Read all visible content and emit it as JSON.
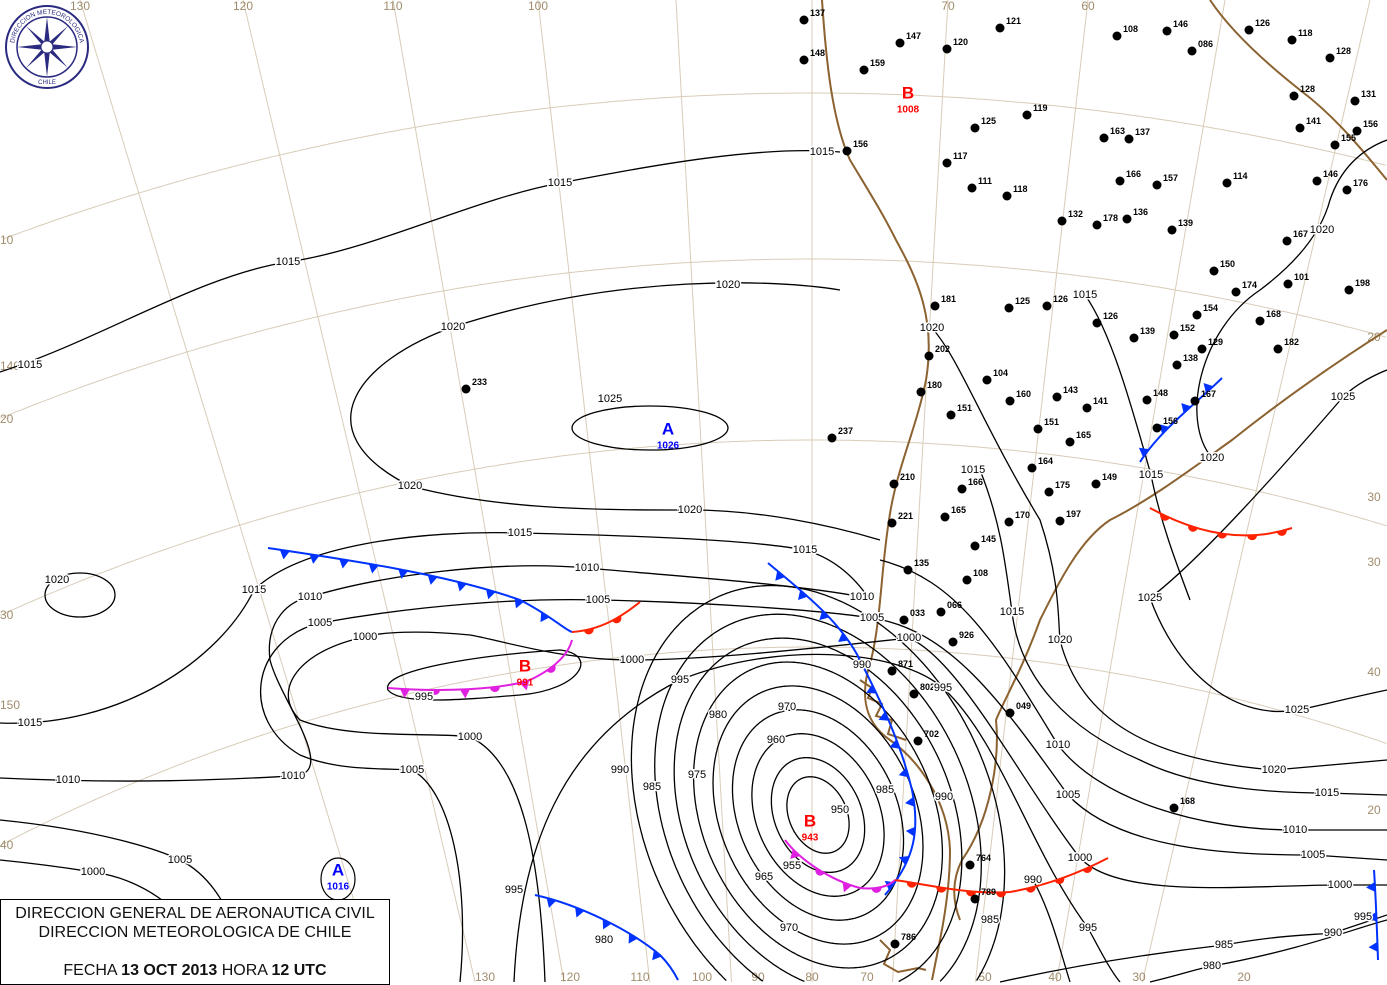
{
  "logo": {
    "text_top": "DIRECCION METEOROLOGICA",
    "text_bottom": "CHILE"
  },
  "caption": {
    "line1": "DIRECCION GENERAL DE AERONAUTICA CIVIL",
    "line2": "DIRECCION METEOROLOGICA DE CHILE",
    "date_prefix": "FECHA",
    "date": "13 OCT 2013",
    "time_prefix": "HORA",
    "time": "12 UTC"
  },
  "colors": {
    "high": "#0000ff",
    "low": "#ff0000",
    "cold_front": "#0033ff",
    "warm_front": "#ff2200",
    "occluded_front": "#e020e0",
    "coastline": "#8b6230",
    "graticule": "#d8ccb8"
  },
  "pressure_centers": [
    {
      "letter": "A",
      "value": "1026",
      "type": "high"
    },
    {
      "letter": "B",
      "value": "991",
      "type": "low"
    },
    {
      "letter": "B",
      "value": "943",
      "type": "low"
    },
    {
      "letter": "B",
      "value": "1008",
      "type": "low"
    },
    {
      "letter": "A",
      "value": "1016",
      "type": "high"
    }
  ],
  "graticule_labels": [
    "130",
    "120",
    "110",
    "100",
    "70",
    "60",
    "10",
    "140",
    "20",
    "30",
    "150",
    "40",
    "20",
    "30",
    "30",
    "40",
    "20",
    "130",
    "120",
    "110",
    "100",
    "90",
    "80",
    "70",
    "50",
    "40",
    "30",
    "20"
  ],
  "isobar_labels": [
    "1015",
    "1015",
    "1015",
    "1015",
    "1020",
    "1020",
    "1020",
    "1020",
    "1020",
    "1020",
    "1025",
    "1015",
    "1015",
    "1015",
    "1015",
    "1010",
    "1010",
    "1010",
    "1010",
    "1010",
    "1005",
    "1005",
    "1005",
    "1005",
    "1005",
    "1000",
    "1000",
    "1000",
    "1000",
    "1000",
    "995",
    "995",
    "995",
    "995",
    "990",
    "990",
    "990",
    "985",
    "985",
    "985",
    "980",
    "980",
    "975",
    "970",
    "970",
    "965",
    "960",
    "955",
    "950",
    "1015",
    "1020",
    "1010",
    "1005",
    "1000",
    "995",
    "990",
    "1025",
    "1025",
    "1025",
    "1020",
    "1020",
    "1015",
    "1010",
    "1005",
    "1000",
    "995",
    "990",
    "985",
    "980",
    "1020",
    "1015",
    "1015",
    "1015"
  ],
  "stations": [
    "137",
    "148",
    "159",
    "147",
    "121",
    "120",
    "119",
    "125",
    "117",
    "111",
    "118",
    "156",
    "108",
    "146",
    "126",
    "118",
    "128",
    "086",
    "131",
    "128",
    "141",
    "156",
    "155",
    "146",
    "176",
    "163",
    "137",
    "166",
    "157",
    "114",
    "136",
    "178",
    "132",
    "139",
    "167",
    "154",
    "150",
    "174",
    "198",
    "101",
    "168",
    "182",
    "129",
    "138",
    "152",
    "139",
    "126",
    "125",
    "126",
    "181",
    "202",
    "180",
    "151",
    "104",
    "143",
    "141",
    "160",
    "148",
    "167",
    "156",
    "165",
    "164",
    "151",
    "149",
    "175",
    "166",
    "170",
    "197",
    "165",
    "145",
    "108",
    "135",
    "221",
    "210",
    "237",
    "233",
    "066",
    "033",
    "926",
    "871",
    "802",
    "049",
    "702",
    "764",
    "789",
    "786",
    "168"
  ]
}
